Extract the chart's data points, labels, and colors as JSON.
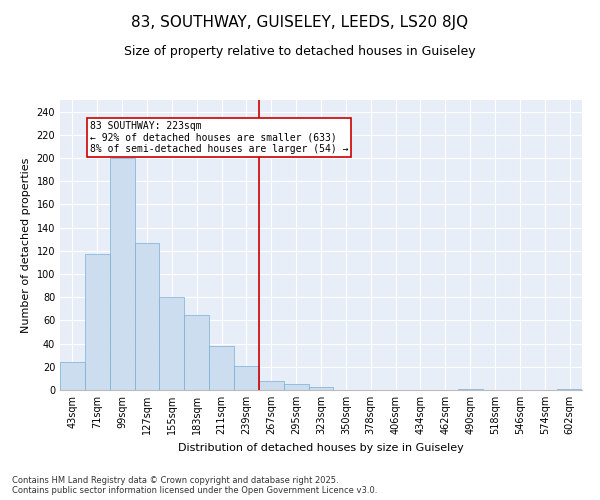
{
  "title": "83, SOUTHWAY, GUISELEY, LEEDS, LS20 8JQ",
  "subtitle": "Size of property relative to detached houses in Guiseley",
  "xlabel": "Distribution of detached houses by size in Guiseley",
  "ylabel": "Number of detached properties",
  "categories": [
    "43sqm",
    "71sqm",
    "99sqm",
    "127sqm",
    "155sqm",
    "183sqm",
    "211sqm",
    "239sqm",
    "267sqm",
    "295sqm",
    "323sqm",
    "350sqm",
    "378sqm",
    "406sqm",
    "434sqm",
    "462sqm",
    "490sqm",
    "518sqm",
    "546sqm",
    "574sqm",
    "602sqm"
  ],
  "values": [
    24,
    117,
    200,
    127,
    80,
    65,
    38,
    21,
    8,
    5,
    3,
    0,
    0,
    0,
    0,
    0,
    1,
    0,
    0,
    0,
    1
  ],
  "bar_color": "#ccddf0",
  "bar_edge_color": "#7aadd4",
  "vline_x": 7.5,
  "vline_color": "#cc0000",
  "annotation_title": "83 SOUTHWAY: 223sqm",
  "annotation_line1": "← 92% of detached houses are smaller (633)",
  "annotation_line2": "8% of semi-detached houses are larger (54) →",
  "annotation_box_color": "#cc0000",
  "ylim": [
    0,
    250
  ],
  "yticks": [
    0,
    20,
    40,
    60,
    80,
    100,
    120,
    140,
    160,
    180,
    200,
    220,
    240
  ],
  "background_color": "#e8eef8",
  "footer_line1": "Contains HM Land Registry data © Crown copyright and database right 2025.",
  "footer_line2": "Contains public sector information licensed under the Open Government Licence v3.0.",
  "title_fontsize": 11,
  "subtitle_fontsize": 9,
  "axis_label_fontsize": 8,
  "tick_fontsize": 7,
  "annotation_fontsize": 7,
  "footer_fontsize": 6
}
